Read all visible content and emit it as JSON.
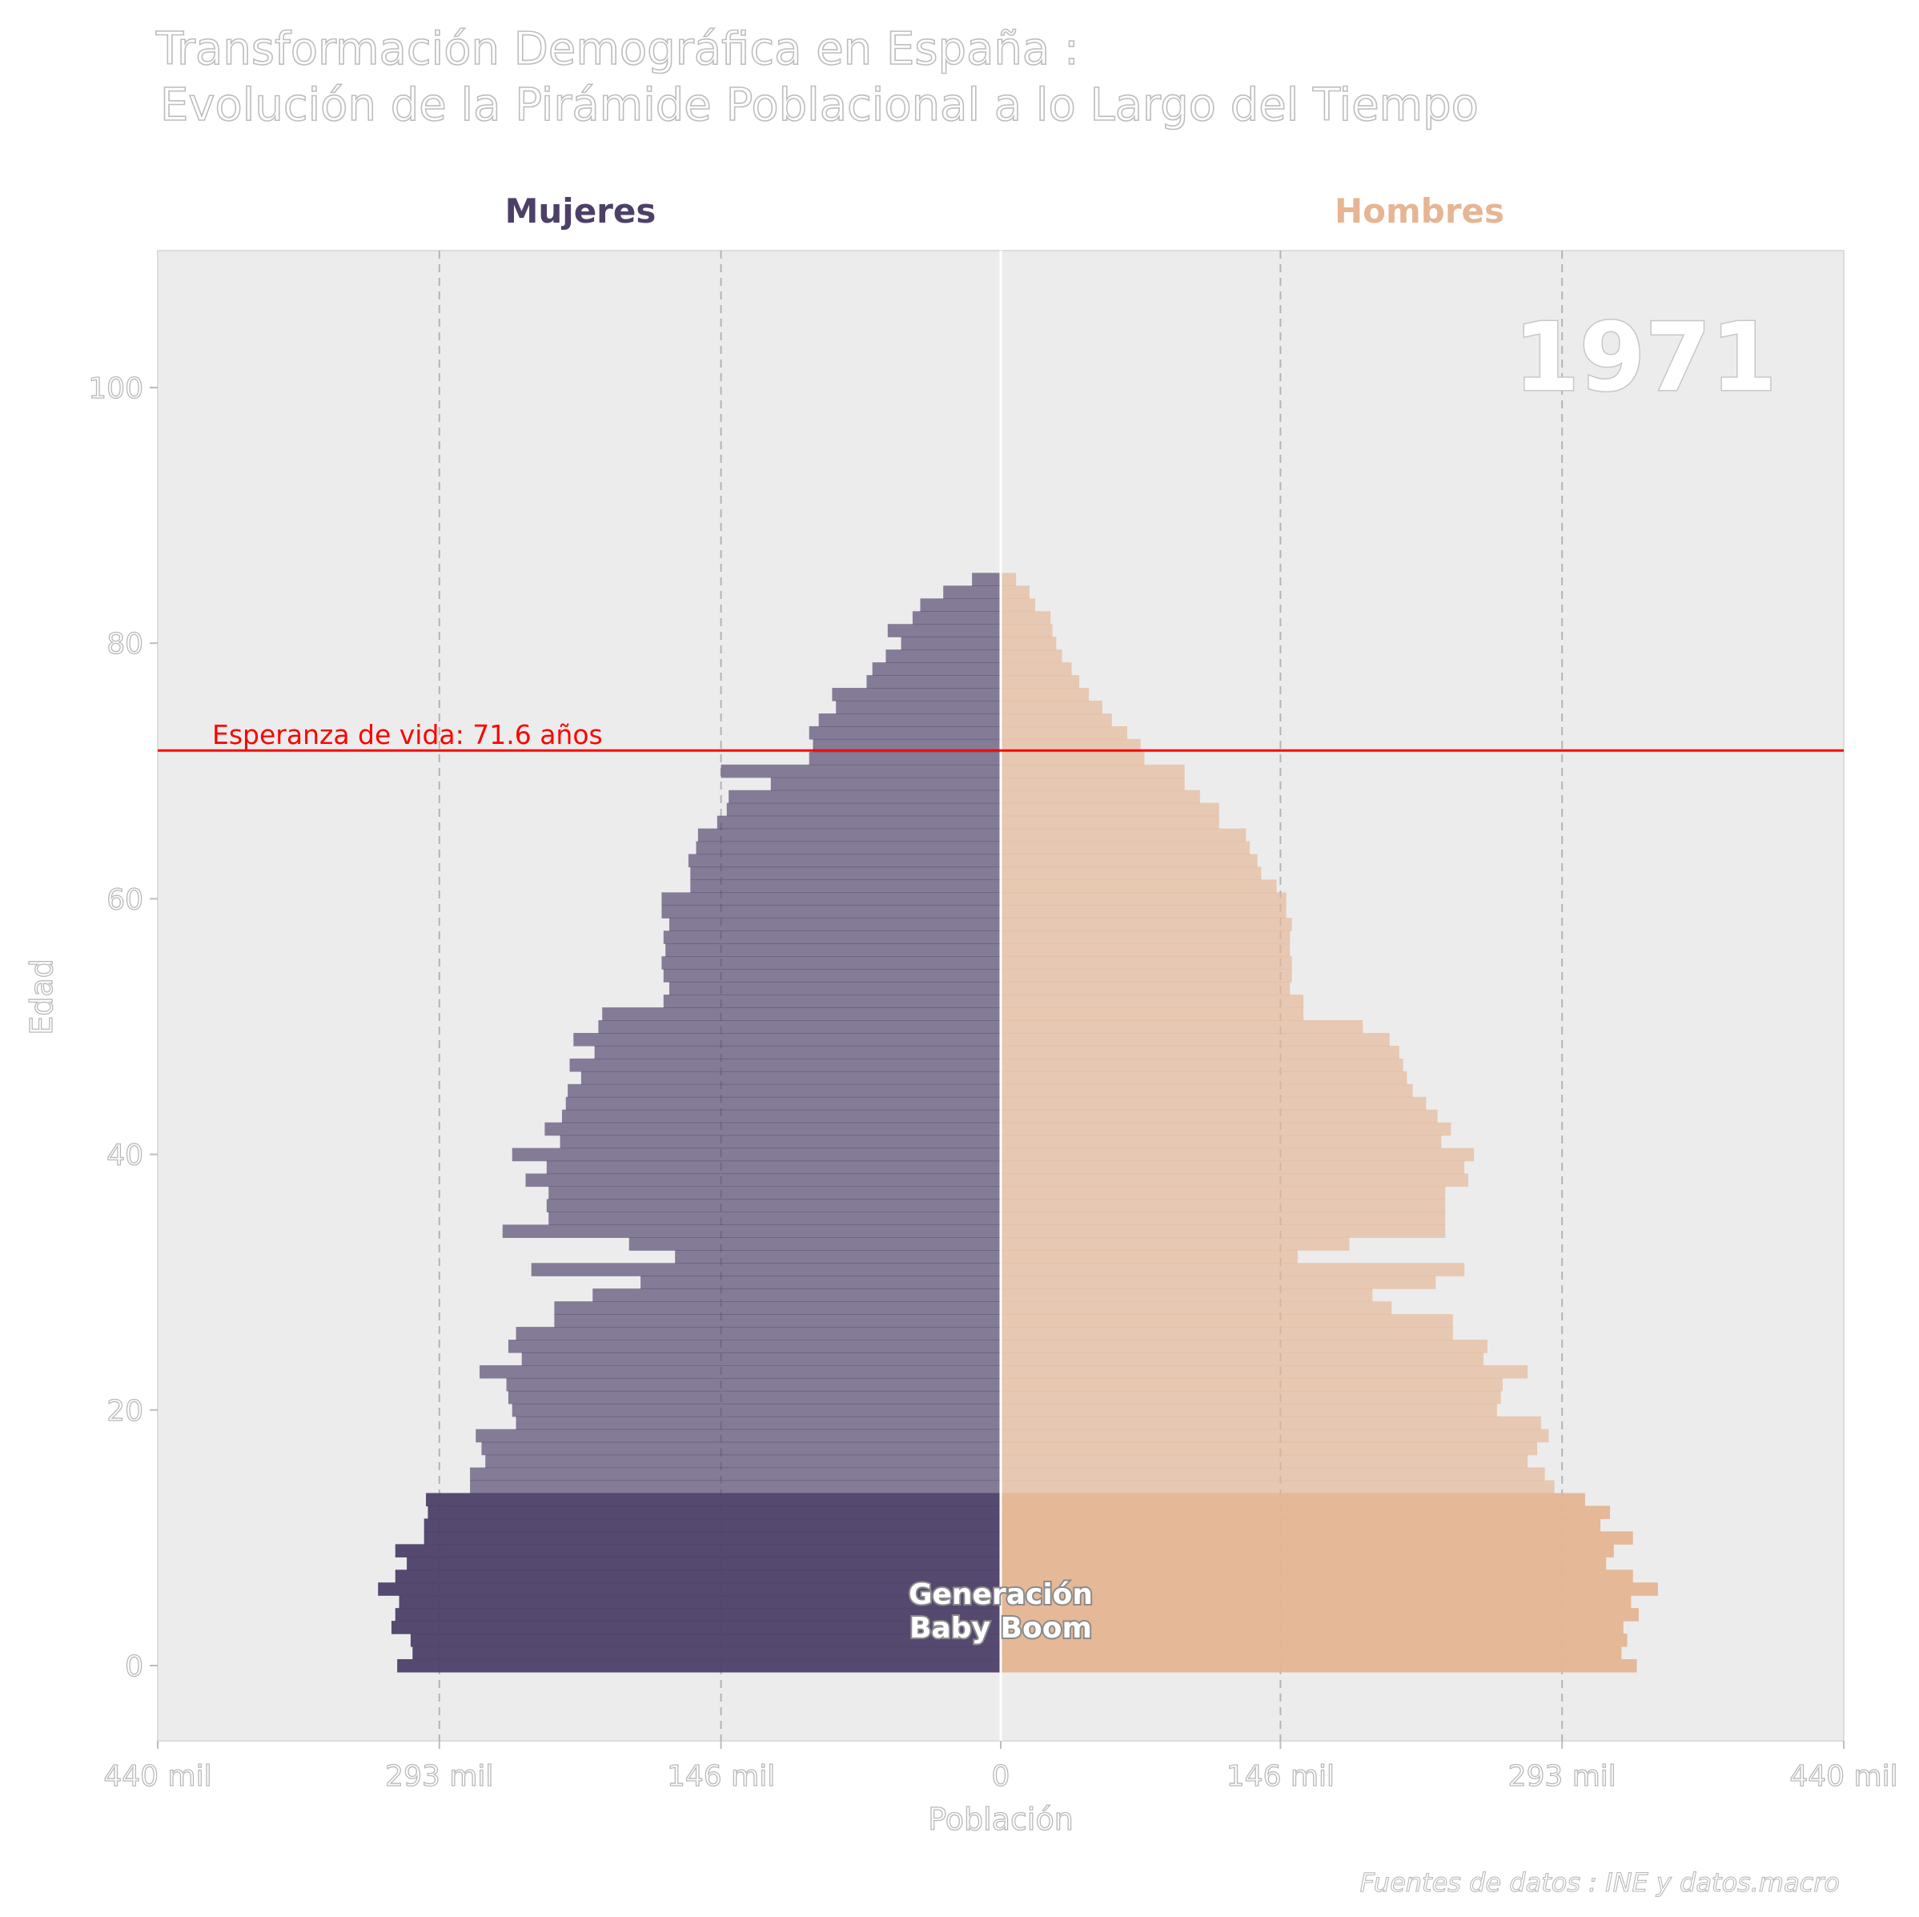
{
  "title_line1": "Transformación Demográfica en España :",
  "title_line2": "Evolución de la Pirámide Poblacional a lo Largo del Tiempo",
  "year": "1971",
  "caption": "Fuentes de datos : INE y datos.macro",
  "life_expectancy_label": "Esperanza de vida: 71.6 años",
  "boom_label_line1": "Generación",
  "boom_label_line2": "Baby Boom",
  "colors": {
    "mujeres": "#4d4068",
    "hombres": "#e5b594",
    "panel_bg": "#ececec",
    "life_line": "#ff0000",
    "grid": "#b4b4b4"
  },
  "chart_data": {
    "type": "bar",
    "orientation": "horizontal-pyramid",
    "xlabel": "Población",
    "ylabel": "Edad",
    "facets": [
      "Mujeres",
      "Hombres"
    ],
    "x_ticks": [
      "440 mil",
      "293 mil",
      "146 mil",
      "0",
      "146 mil",
      "293 mil",
      "440 mil"
    ],
    "x_tick_values": [
      -440,
      -293,
      -146,
      0,
      146,
      293,
      440
    ],
    "y_ticks": [
      0,
      20,
      40,
      60,
      80,
      100
    ],
    "xlim": [
      -440,
      440
    ],
    "ylim": [
      -5,
      110
    ],
    "units": "miles de personas",
    "life_expectancy": 71.6,
    "baby_boom_ages": [
      0,
      13
    ],
    "ages": [
      0,
      1,
      2,
      3,
      4,
      5,
      6,
      7,
      8,
      9,
      10,
      11,
      12,
      13,
      14,
      15,
      16,
      17,
      18,
      19,
      20,
      21,
      22,
      23,
      24,
      25,
      26,
      27,
      28,
      29,
      30,
      31,
      32,
      33,
      34,
      35,
      36,
      37,
      38,
      39,
      40,
      41,
      42,
      43,
      44,
      45,
      46,
      47,
      48,
      49,
      50,
      51,
      52,
      53,
      54,
      55,
      56,
      57,
      58,
      59,
      60,
      61,
      62,
      63,
      64,
      65,
      66,
      67,
      68,
      69,
      70,
      71,
      72,
      73,
      74,
      75,
      76,
      77,
      78,
      79,
      80,
      81,
      82,
      83,
      84,
      85
    ],
    "series": [
      {
        "name": "Mujeres",
        "values": [
          315,
          307,
          308,
          318,
          316,
          314,
          325,
          316,
          310,
          316,
          301,
          301,
          299,
          300,
          277,
          277,
          269,
          271,
          274,
          253,
          255,
          257,
          258,
          272,
          250,
          257,
          253,
          233,
          233,
          213,
          188,
          245,
          170,
          194,
          260,
          236,
          237,
          236,
          248,
          237,
          255,
          230,
          238,
          229,
          227,
          226,
          219,
          225,
          212,
          223,
          210,
          208,
          176,
          173,
          176,
          177,
          175,
          176,
          173,
          177,
          177,
          162,
          162,
          163,
          159,
          158,
          148,
          143,
          142,
          120,
          146,
          100,
          98,
          100,
          95,
          86,
          88,
          70,
          67,
          60,
          52,
          59,
          46,
          42,
          30,
          15
        ],
        "boom_values": [
          315,
          307,
          308,
          318,
          316,
          314,
          325,
          316,
          310,
          316,
          301,
          301,
          299,
          300
        ]
      },
      {
        "name": "Hombres",
        "values": [
          332,
          324,
          327,
          325,
          333,
          329,
          343,
          330,
          316,
          320,
          330,
          313,
          318,
          305,
          289,
          284,
          275,
          280,
          286,
          282,
          259,
          261,
          262,
          275,
          252,
          254,
          236,
          236,
          204,
          194,
          227,
          242,
          155,
          182,
          232,
          232,
          232,
          232,
          244,
          242,
          247,
          230,
          235,
          228,
          222,
          215,
          212,
          210,
          208,
          203,
          189,
          158,
          158,
          151,
          152,
          152,
          151,
          151,
          152,
          149,
          149,
          144,
          136,
          134,
          130,
          128,
          114,
          114,
          104,
          96,
          96,
          75,
          73,
          66,
          58,
          53,
          46,
          41,
          37,
          32,
          29,
          27,
          26,
          18,
          15,
          8
        ],
        "boom_values": [
          332,
          324,
          327,
          325,
          333,
          329,
          343,
          330,
          316,
          320,
          330,
          313,
          318,
          305
        ]
      }
    ]
  }
}
